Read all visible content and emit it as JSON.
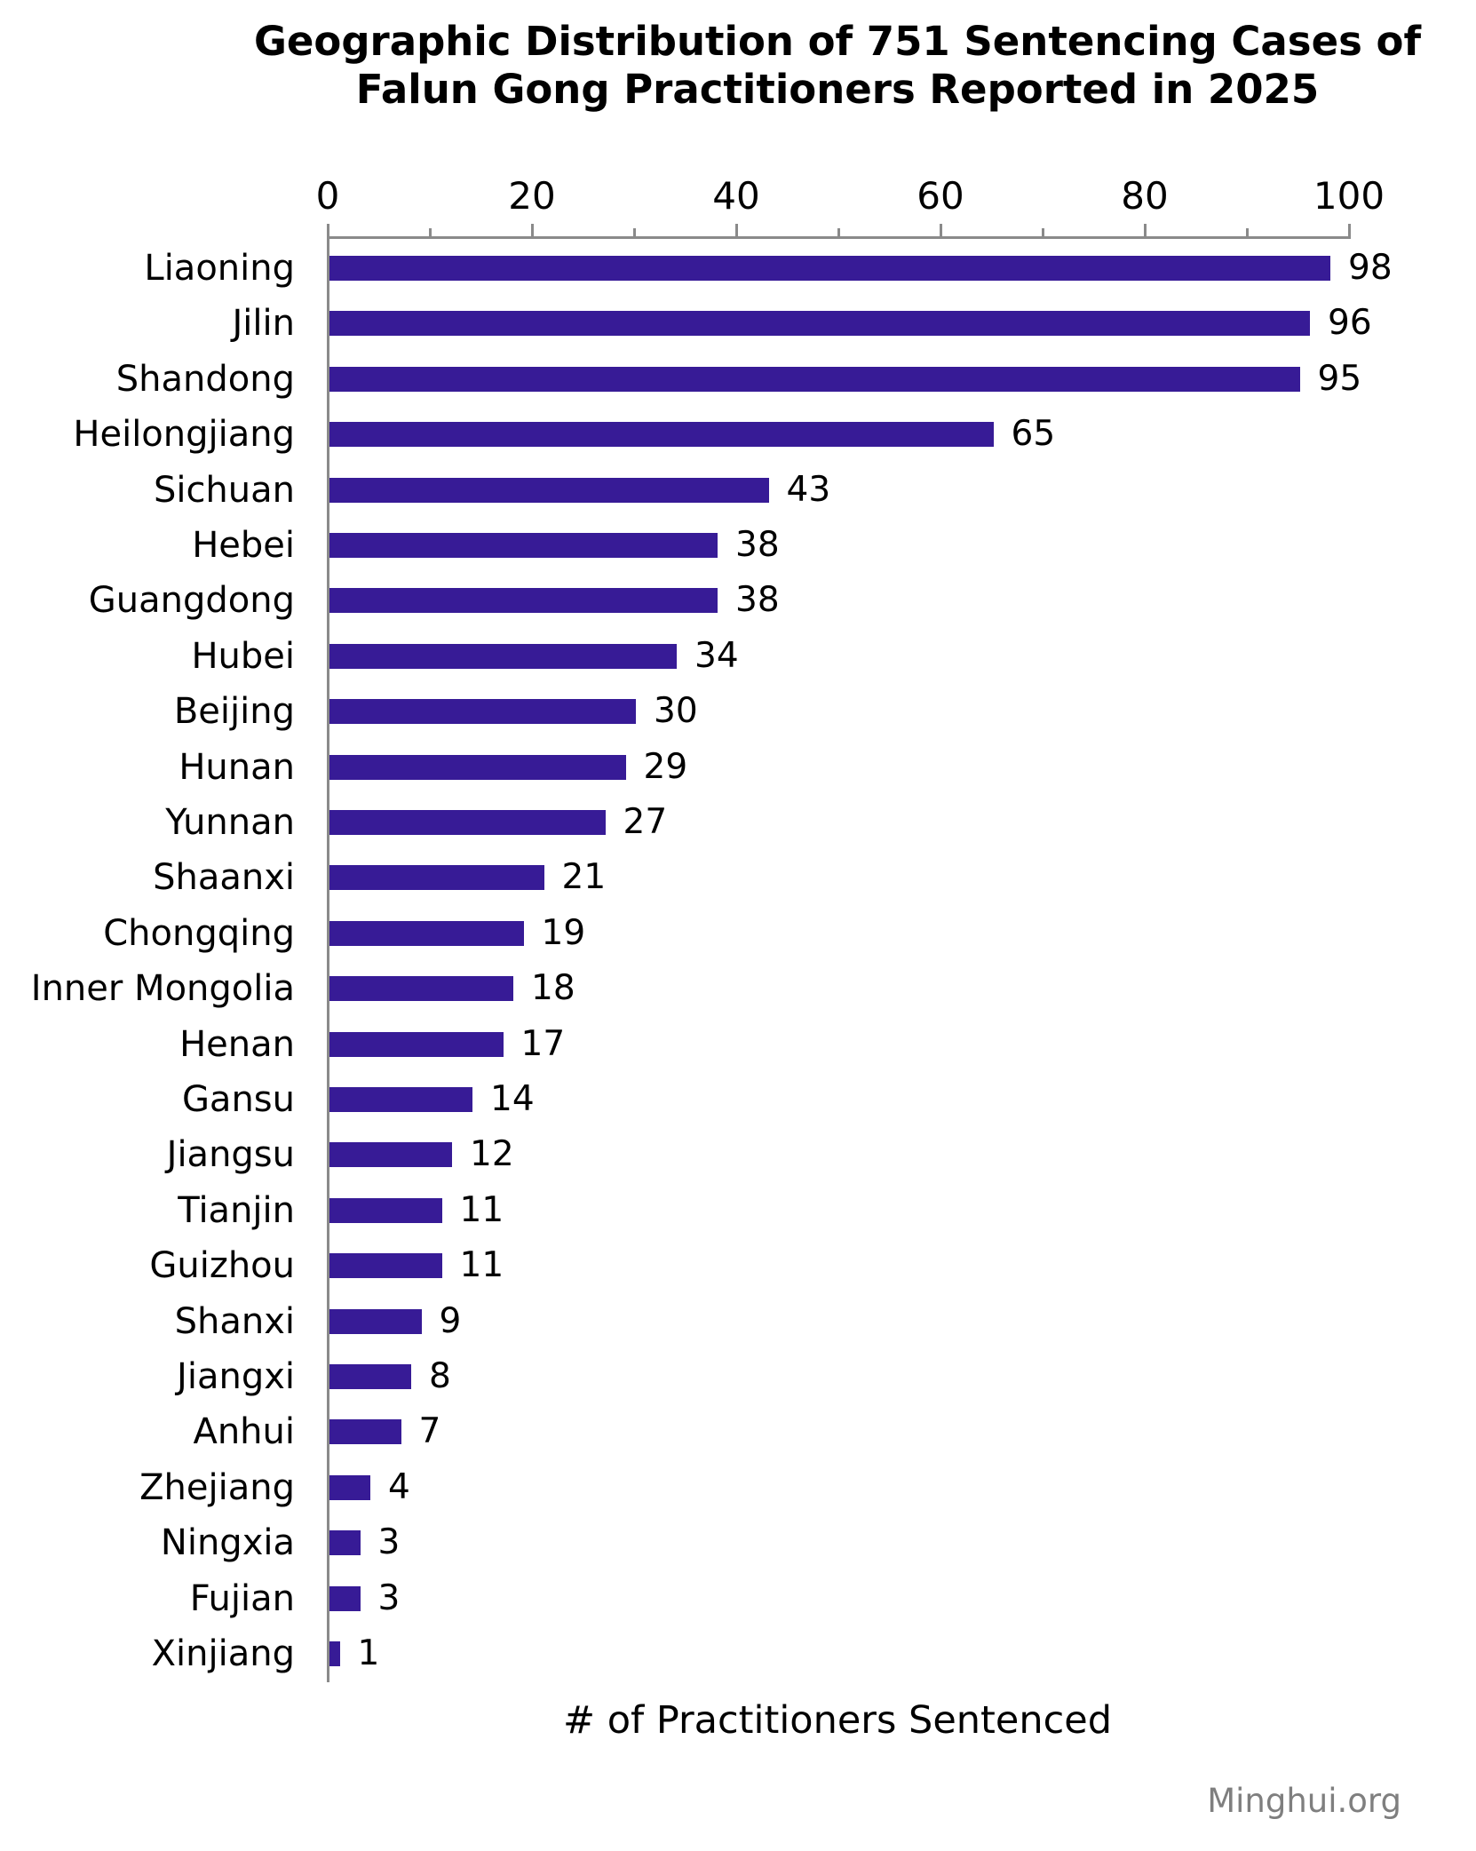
{
  "title": {
    "line1": "Geographic Distribution of 751 Sentencing Cases of",
    "line2": "Falun Gong Practitioners Reported in 2025"
  },
  "footer": {
    "source": "Minghui.org"
  },
  "chart_data": {
    "type": "bar",
    "orientation": "horizontal",
    "title": "Geographic Distribution of 751 Sentencing Cases of Falun Gong Practitioners Reported in 2025",
    "xlabel": "# of Practitioners Sentenced",
    "ylabel": "",
    "categories": [
      "Liaoning",
      "Jilin",
      "Shandong",
      "Heilongjiang",
      "Sichuan",
      "Hebei",
      "Guangdong",
      "Hubei",
      "Beijing",
      "Hunan",
      "Yunnan",
      "Shaanxi",
      "Chongqing",
      "Inner Mongolia",
      "Henan",
      "Gansu",
      "Jiangsu",
      "Tianjin",
      "Guizhou",
      "Shanxi",
      "Jiangxi",
      "Anhui",
      "Zhejiang",
      "Ningxia",
      "Fujian",
      "Xinjiang"
    ],
    "values": [
      98,
      96,
      95,
      65,
      43,
      38,
      38,
      34,
      30,
      29,
      27,
      21,
      19,
      18,
      17,
      14,
      12,
      11,
      11,
      9,
      8,
      7,
      4,
      3,
      3,
      1
    ],
    "total": 751,
    "xlim": [
      0,
      100
    ],
    "xticks_major": [
      0,
      20,
      40,
      60,
      80,
      100
    ],
    "xticks_minor": [
      10,
      30,
      50,
      70,
      90
    ],
    "grid": false,
    "legend": null,
    "value_labels_shown": true,
    "colors": {
      "bar": "#371B96",
      "axis": "#8A8A8A",
      "text": "#000000",
      "source_text": "#7F7F7F"
    }
  }
}
